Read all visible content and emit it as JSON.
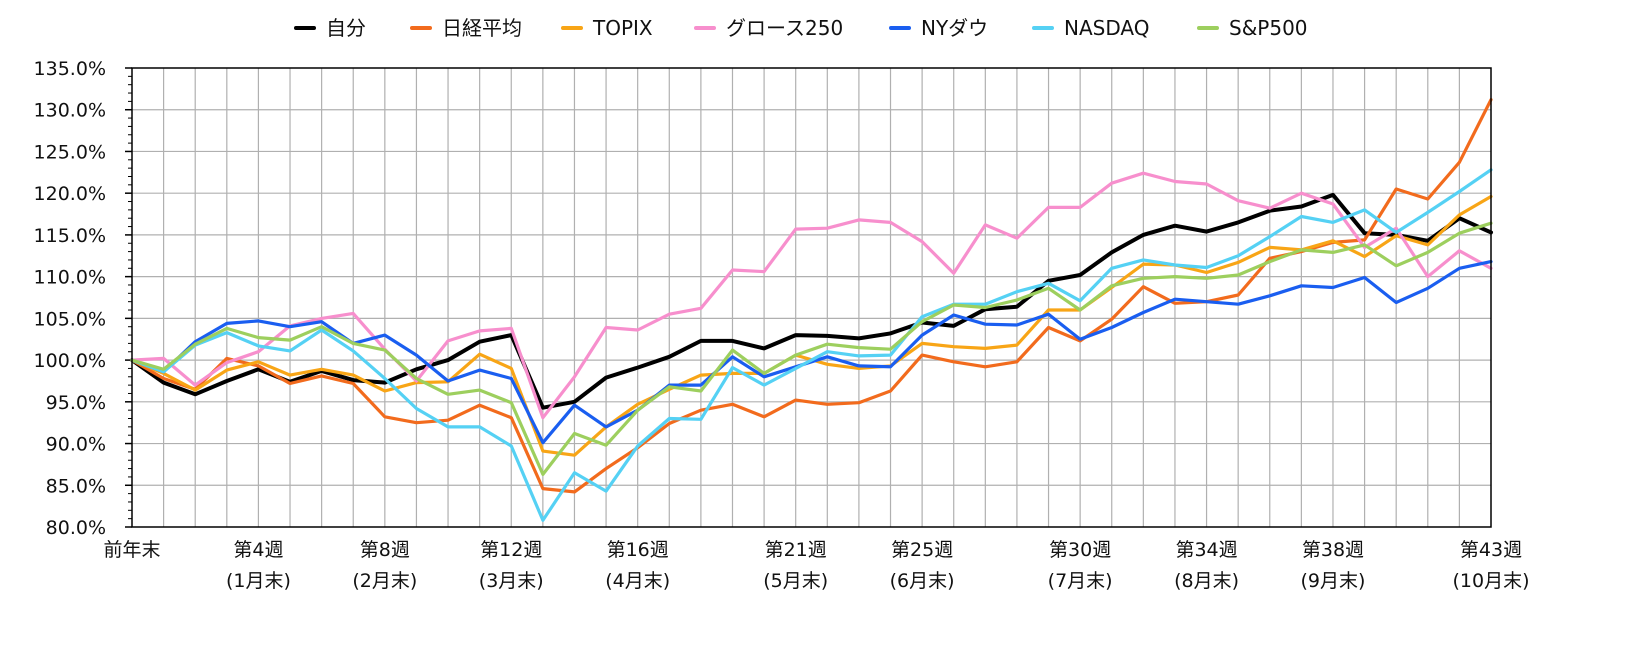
{
  "chart_data": {
    "type": "line",
    "title": "",
    "xlabel": "",
    "ylabel": "",
    "ylim": [
      80,
      135
    ],
    "ytick_step": 5,
    "y_format_suffix": "%",
    "n_points": 44,
    "grid": true,
    "legend_position": "top",
    "x_tick_labels": [
      {
        "i": 0,
        "line1": "前年末",
        "line2": ""
      },
      {
        "i": 4,
        "line1": "第4週",
        "line2": "(1月末)"
      },
      {
        "i": 8,
        "line1": "第8週",
        "line2": "(2月末)"
      },
      {
        "i": 12,
        "line1": "第12週",
        "line2": "(3月末)"
      },
      {
        "i": 16,
        "line1": "第16週",
        "line2": "(4月末)"
      },
      {
        "i": 21,
        "line1": "第21週",
        "line2": "(5月末)"
      },
      {
        "i": 25,
        "line1": "第25週",
        "line2": "(6月末)"
      },
      {
        "i": 30,
        "line1": "第30週",
        "line2": "(7月末)"
      },
      {
        "i": 34,
        "line1": "第34週",
        "line2": "(8月末)"
      },
      {
        "i": 38,
        "line1": "第38週",
        "line2": "(9月末)"
      },
      {
        "i": 43,
        "line1": "第43週",
        "line2": "(10月末)"
      }
    ],
    "series": [
      {
        "name": "自分",
        "color": "#000000",
        "values": [
          100,
          97.3,
          95.9,
          97.5,
          98.9,
          97.4,
          98.7,
          97.6,
          97.3,
          98.9,
          100.0,
          102.2,
          103.0,
          94.3,
          95.0,
          97.9,
          99.1,
          100.4,
          102.3,
          102.3,
          101.4,
          103.0,
          102.9,
          102.6,
          103.2,
          104.5,
          104.1,
          106.1,
          106.4,
          109.5,
          110.2,
          112.9,
          115.0,
          116.1,
          115.4,
          116.5,
          117.9,
          118.4,
          119.8,
          115.2,
          115.0,
          114.3,
          117.0,
          115.3
        ]
      },
      {
        "name": "日経平均",
        "color": "#f26b1d",
        "values": [
          100,
          97.8,
          96.5,
          100.2,
          99.3,
          97.2,
          98.1,
          97.2,
          93.2,
          92.5,
          92.8,
          94.6,
          93.1,
          84.6,
          84.2,
          87.0,
          89.5,
          92.4,
          94.0,
          94.7,
          93.2,
          95.2,
          94.7,
          94.9,
          96.3,
          100.6,
          99.8,
          99.2,
          99.8,
          103.9,
          102.3,
          104.9,
          108.8,
          106.8,
          107.0,
          107.8,
          112.2,
          113.0,
          114.1,
          114.4,
          120.5,
          119.3,
          123.7,
          131.2
        ]
      },
      {
        "name": "TOPIX",
        "color": "#f8a516",
        "values": [
          100,
          98.4,
          96.4,
          98.8,
          99.8,
          98.2,
          98.9,
          98.2,
          96.3,
          97.3,
          97.4,
          100.7,
          99.0,
          89.1,
          88.6,
          92.0,
          94.7,
          96.5,
          98.2,
          98.4,
          98.4,
          100.6,
          99.5,
          99.0,
          99.3,
          102.0,
          101.6,
          101.4,
          101.8,
          106.0,
          106.0,
          108.7,
          111.5,
          111.4,
          110.5,
          111.7,
          113.5,
          113.2,
          114.3,
          112.4,
          114.9,
          113.8,
          117.4,
          119.6
        ]
      },
      {
        "name": "グロース250",
        "color": "#f78fcd",
        "values": [
          100,
          100.2,
          97.0,
          99.7,
          101.0,
          104.1,
          105.0,
          105.6,
          101.3,
          97.5,
          102.3,
          103.5,
          103.8,
          93.1,
          98.0,
          103.9,
          103.6,
          105.5,
          106.2,
          110.8,
          110.6,
          115.7,
          115.8,
          116.8,
          116.5,
          114.2,
          110.4,
          116.2,
          114.6,
          118.3,
          118.3,
          121.2,
          122.4,
          121.4,
          121.1,
          119.1,
          118.2,
          120.0,
          118.7,
          113.5,
          115.8,
          110.0,
          113.1,
          111.0
        ]
      },
      {
        "name": "NYダウ",
        "color": "#1a5ef0",
        "values": [
          100,
          98.6,
          102.2,
          104.4,
          104.7,
          104.0,
          104.6,
          102.0,
          103.0,
          100.6,
          97.5,
          98.8,
          97.8,
          90.1,
          94.6,
          92.0,
          94.0,
          97.0,
          97.0,
          100.4,
          98.0,
          99.2,
          100.4,
          99.3,
          99.2,
          103.0,
          105.4,
          104.3,
          104.2,
          105.5,
          102.5,
          103.9,
          105.7,
          107.3,
          107.0,
          106.7,
          107.7,
          108.9,
          108.7,
          109.9,
          106.9,
          108.6,
          111.0,
          111.8
        ]
      },
      {
        "name": "NASDAQ",
        "color": "#55d1f4",
        "values": [
          100,
          98.6,
          101.8,
          103.3,
          101.7,
          101.1,
          103.6,
          101.1,
          97.8,
          94.2,
          92.0,
          92.0,
          89.7,
          80.8,
          86.5,
          84.3,
          89.7,
          93.0,
          92.9,
          99.1,
          97.0,
          99.0,
          101.0,
          100.5,
          100.6,
          105.2,
          106.7,
          106.7,
          108.2,
          109.2,
          107.1,
          111.0,
          112.0,
          111.4,
          111.1,
          112.5,
          114.8,
          117.2,
          116.5,
          118.0,
          115.3,
          117.7,
          120.2,
          122.8
        ]
      },
      {
        "name": "S&P500",
        "color": "#9dcf5e",
        "values": [
          100,
          98.9,
          101.9,
          103.8,
          102.7,
          102.4,
          104.0,
          102.0,
          101.2,
          97.8,
          95.9,
          96.4,
          94.9,
          86.3,
          91.2,
          89.8,
          94.0,
          96.8,
          96.3,
          101.2,
          98.4,
          100.6,
          101.9,
          101.5,
          101.3,
          104.6,
          106.6,
          106.3,
          107.2,
          108.6,
          106.0,
          108.9,
          109.8,
          110.0,
          109.8,
          110.2,
          111.8,
          113.2,
          112.9,
          113.8,
          111.3,
          112.9,
          115.2,
          116.4
        ]
      }
    ]
  }
}
